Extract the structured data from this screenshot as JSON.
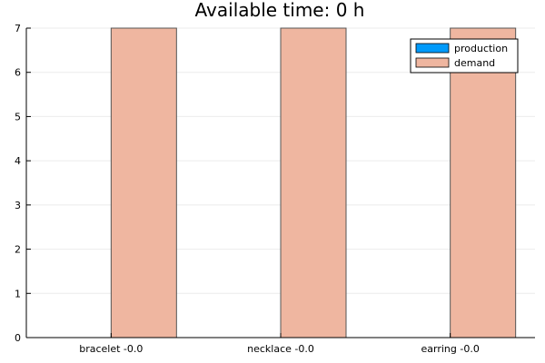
{
  "chart_data": {
    "type": "bar",
    "title": "Available time: 0 h",
    "categories": [
      "bracelet -0.0",
      "necklace -0.0",
      "earring -0.0"
    ],
    "series": [
      {
        "name": "production",
        "values": [
          0,
          0,
          0
        ],
        "color": "#009AFA"
      },
      {
        "name": "demand",
        "values": [
          7,
          7,
          7
        ],
        "color": "#EFB6A0"
      }
    ],
    "xlabel": "",
    "ylabel": "",
    "ylim": [
      0,
      7
    ],
    "yticks": [
      "0",
      "1",
      "2",
      "3",
      "4",
      "5",
      "6",
      "7"
    ],
    "grid": true,
    "legend": "top-right"
  }
}
